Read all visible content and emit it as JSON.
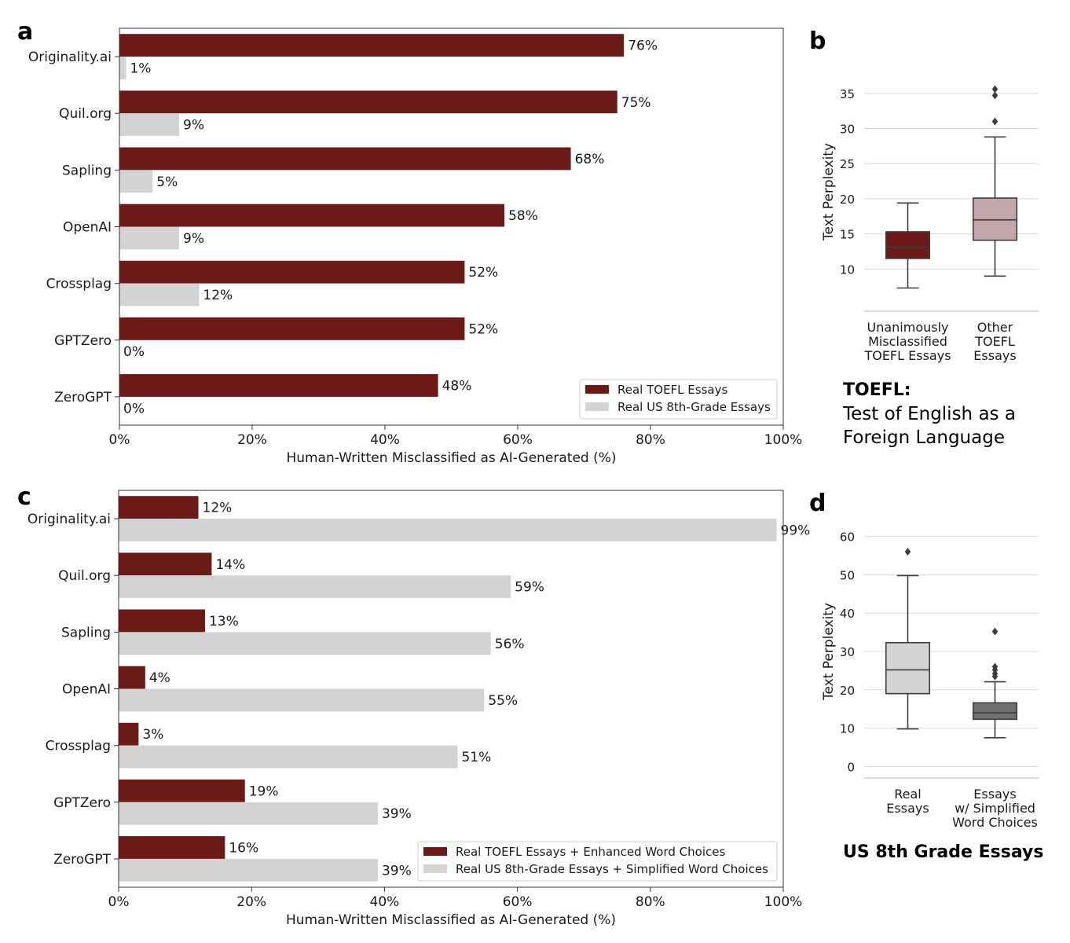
{
  "colors": {
    "toefl": "#6b1a17",
    "us8": "#d3d3d3",
    "box_misclassified": "#6b1a17",
    "box_other": "#c4a6ad",
    "box_real": "#d3d3d3",
    "box_simplified": "#707070"
  },
  "chart_data": [
    {
      "panel": "a",
      "type": "bar",
      "orientation": "horizontal",
      "categories": [
        "Originality.ai",
        "Quil.org",
        "Sapling",
        "OpenAI",
        "Crossplag",
        "GPTZero",
        "ZeroGPT"
      ],
      "series": [
        {
          "name": "Real TOEFL Essays",
          "values": [
            76,
            75,
            68,
            58,
            52,
            52,
            48
          ],
          "labels": [
            "76%",
            "75%",
            "68%",
            "58%",
            "52%",
            "52%",
            "48%"
          ]
        },
        {
          "name": "Real US 8th-Grade Essays",
          "values": [
            1,
            9,
            5,
            9,
            12,
            0,
            0
          ],
          "labels": [
            "1%",
            "9%",
            "5%",
            "9%",
            "12%",
            "0%",
            "0%"
          ]
        }
      ],
      "xlim": [
        0,
        100
      ],
      "xticks": [
        "0%",
        "20%",
        "40%",
        "60%",
        "80%",
        "100%"
      ],
      "xlabel": "Human-Written Misclassified as AI-Generated (%)",
      "legend": "bottom-right"
    },
    {
      "panel": "b",
      "type": "box",
      "ylabel": "Text Perplexity",
      "yticks": [
        "10",
        "15",
        "20",
        "25",
        "30",
        "35"
      ],
      "ylim": [
        4,
        38
      ],
      "groups": [
        {
          "label_lines": [
            "Unanimously",
            "Misclassified",
            "TOEFL Essays"
          ],
          "whisker_low": 7.3,
          "q1": 11.5,
          "median": 13.1,
          "q3": 15.3,
          "whisker_high": 19.4,
          "outliers": []
        },
        {
          "label_lines": [
            "Other",
            "TOEFL",
            "Essays"
          ],
          "whisker_low": 9.0,
          "q1": 14.1,
          "median": 17.0,
          "q3": 20.1,
          "whisker_high": 28.8,
          "outliers": [
            31.0,
            34.7,
            35.6
          ]
        }
      ]
    },
    {
      "panel": "c",
      "type": "bar",
      "orientation": "horizontal",
      "categories": [
        "Originality.ai",
        "Quil.org",
        "Sapling",
        "OpenAI",
        "Crossplag",
        "GPTZero",
        "ZeroGPT"
      ],
      "series": [
        {
          "name": "Real TOEFL Essays + Enhanced Word Choices",
          "values": [
            12,
            14,
            13,
            4,
            3,
            19,
            16
          ],
          "labels": [
            "12%",
            "14%",
            "13%",
            "4%",
            "3%",
            "19%",
            "16%"
          ]
        },
        {
          "name": "Real US 8th-Grade Essays + Simplified Word Choices",
          "values": [
            99,
            59,
            56,
            55,
            51,
            39,
            39
          ],
          "labels": [
            "99%",
            "59%",
            "56%",
            "55%",
            "51%",
            "39%",
            "39%"
          ]
        }
      ],
      "xlim": [
        0,
        100
      ],
      "xticks": [
        "0%",
        "20%",
        "40%",
        "60%",
        "80%",
        "100%"
      ],
      "xlabel": "Human-Written Misclassified as AI-Generated (%)",
      "legend": "bottom-right"
    },
    {
      "panel": "d",
      "type": "box",
      "ylabel": "Text Perplexity",
      "yticks": [
        "0",
        "10",
        "20",
        "30",
        "40",
        "50",
        "60"
      ],
      "ylim": [
        -3,
        63
      ],
      "groups": [
        {
          "label_lines": [
            "Real",
            "Essays"
          ],
          "whisker_low": 9.8,
          "q1": 19.0,
          "median": 25.2,
          "q3": 32.3,
          "whisker_high": 49.8,
          "outliers": [
            56.0
          ]
        },
        {
          "label_lines": [
            "Essays",
            "w/ Simplified",
            "Word Choices"
          ],
          "whisker_low": 7.5,
          "q1": 12.3,
          "median": 14.0,
          "q3": 16.6,
          "whisker_high": 22.1,
          "outliers": [
            23.5,
            24.2,
            25.2,
            26.0,
            35.2
          ]
        }
      ]
    }
  ],
  "panels": {
    "a": "a",
    "b": "b",
    "c": "c",
    "d": "d"
  },
  "notes": {
    "toefl_title": "TOEFL:",
    "toefl_line1": "Test of English as a",
    "toefl_line2": "Foreign Language",
    "us8_title": "US 8th Grade Essays"
  }
}
